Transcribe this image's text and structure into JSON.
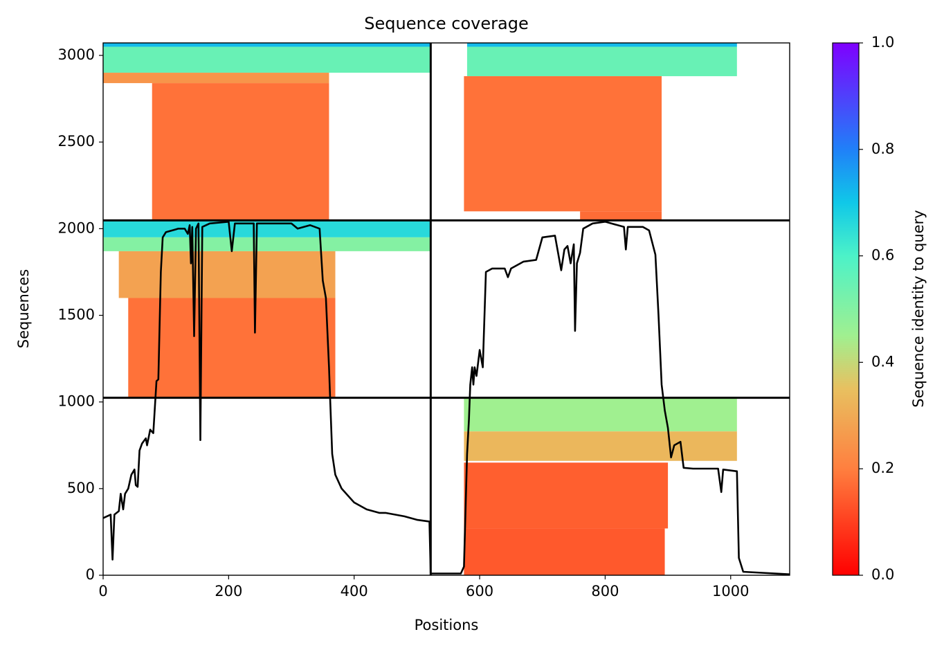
{
  "chart_data": {
    "type": "line",
    "title": "Sequence coverage",
    "xlabel": "Positions",
    "ylabel": "Sequences",
    "xlim": [
      0,
      1094
    ],
    "ylim": [
      0,
      3072
    ],
    "xticks": [
      0,
      200,
      400,
      600,
      800,
      1000
    ],
    "yticks": [
      0,
      500,
      1000,
      1500,
      2000,
      2500,
      3000
    ],
    "dividers": {
      "x": [
        522
      ],
      "y": [
        1024,
        2048
      ]
    },
    "colorbar": {
      "label": "Sequence identity to query",
      "lim": [
        0,
        1
      ],
      "ticks": [
        {
          "value": 0,
          "label": "0.0"
        },
        0.2,
        0.4,
        0.6,
        0.8,
        {
          "value": 1,
          "label": "1.0"
        }
      ]
    },
    "coverage_blocks": [
      {
        "x0": 0,
        "x1": 522,
        "y0": 3050,
        "y1": 3072,
        "identity": 0.72
      },
      {
        "x0": 0,
        "x1": 522,
        "y0": 2900,
        "y1": 3050,
        "identity": 0.55
      },
      {
        "x0": 0,
        "x1": 360,
        "y0": 2840,
        "y1": 2900,
        "identity": 0.25
      },
      {
        "x0": 78,
        "x1": 360,
        "y0": 2048,
        "y1": 2840,
        "identity": 0.18
      },
      {
        "x0": 580,
        "x1": 1010,
        "y0": 3050,
        "y1": 3072,
        "identity": 0.72
      },
      {
        "x0": 580,
        "x1": 1010,
        "y0": 2880,
        "y1": 3050,
        "identity": 0.55
      },
      {
        "x0": 575,
        "x1": 890,
        "y0": 2100,
        "y1": 2880,
        "identity": 0.18
      },
      {
        "x0": 760,
        "x1": 890,
        "y0": 2048,
        "y1": 2100,
        "identity": 0.17
      },
      {
        "x0": 0,
        "x1": 522,
        "y0": 1950,
        "y1": 2048,
        "identity": 0.66
      },
      {
        "x0": 0,
        "x1": 522,
        "y0": 1870,
        "y1": 1950,
        "identity": 0.5
      },
      {
        "x0": 25,
        "x1": 370,
        "y0": 1600,
        "y1": 1870,
        "identity": 0.28
      },
      {
        "x0": 40,
        "x1": 370,
        "y0": 1024,
        "y1": 1600,
        "identity": 0.18
      },
      {
        "x0": 575,
        "x1": 1010,
        "y0": 830,
        "y1": 1024,
        "identity": 0.45
      },
      {
        "x0": 575,
        "x1": 1010,
        "y0": 660,
        "y1": 830,
        "identity": 0.33
      },
      {
        "x0": 575,
        "x1": 900,
        "y0": 270,
        "y1": 650,
        "identity": 0.15
      },
      {
        "x0": 575,
        "x1": 895,
        "y0": 0,
        "y1": 270,
        "identity": 0.14
      }
    ],
    "series": [
      {
        "color": "#000000",
        "x": [
          0,
          12,
          15,
          18,
          25,
          28,
          32,
          35,
          40,
          45,
          50,
          52,
          55,
          58,
          62,
          68,
          70,
          75,
          80,
          85,
          88,
          92,
          95,
          100,
          120,
          130,
          135,
          138,
          140,
          142,
          145,
          148,
          152,
          155,
          158,
          170,
          200,
          205,
          210,
          240,
          242,
          245,
          300,
          310,
          330,
          345,
          350,
          355,
          360,
          362,
          365,
          370,
          380,
          400,
          420,
          440,
          450,
          480,
          500,
          520,
          522,
          570,
          575,
          580,
          583,
          585,
          588,
          590,
          592,
          595,
          600,
          605,
          610,
          620,
          640,
          645,
          650,
          670,
          690,
          700,
          720,
          730,
          735,
          740,
          745,
          750,
          752,
          755,
          760,
          765,
          780,
          800,
          830,
          833,
          836,
          860,
          870,
          880,
          885,
          890,
          895,
          900,
          905,
          910,
          915,
          920,
          925,
          940,
          980,
          985,
          988,
          1010,
          1013,
          1020,
          1094
        ],
        "values": [
          330,
          350,
          90,
          350,
          370,
          470,
          380,
          470,
          500,
          580,
          610,
          520,
          510,
          720,
          760,
          790,
          750,
          840,
          820,
          1120,
          1130,
          1750,
          1950,
          1980,
          2000,
          2000,
          1970,
          2020,
          1800,
          2010,
          1380,
          2000,
          2030,
          780,
          2010,
          2030,
          2040,
          1870,
          2030,
          2030,
          1400,
          2030,
          2030,
          2000,
          2020,
          2000,
          1700,
          1600,
          1200,
          1000,
          700,
          580,
          500,
          420,
          380,
          360,
          360,
          340,
          320,
          310,
          10,
          10,
          50,
          700,
          900,
          1100,
          1200,
          1100,
          1200,
          1150,
          1300,
          1200,
          1750,
          1770,
          1770,
          1720,
          1770,
          1810,
          1820,
          1950,
          1960,
          1760,
          1880,
          1900,
          1800,
          1910,
          1410,
          1800,
          1860,
          2000,
          2030,
          2040,
          2010,
          1880,
          2010,
          2010,
          1990,
          1850,
          1500,
          1100,
          950,
          850,
          680,
          750,
          760,
          770,
          620,
          615,
          615,
          480,
          610,
          600,
          100,
          20,
          5
        ]
      }
    ]
  }
}
